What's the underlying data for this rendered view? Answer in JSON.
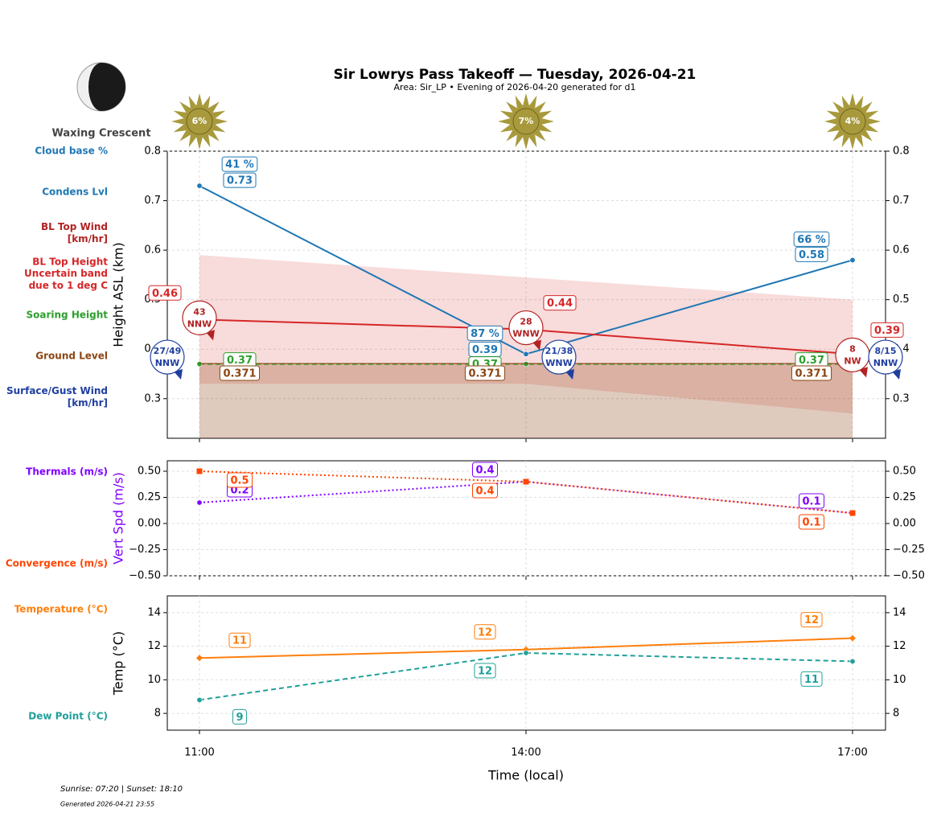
{
  "header": {
    "title": "Sir Lowrys Pass Takeoff — Tuesday, 2026-04-21",
    "subtitle": "Area: Sir_LP • Evening of 2026-04-20 generated for d1",
    "moon_phase": "Waxing Crescent",
    "sun_labels": [
      "6%",
      "7%",
      "4%"
    ]
  },
  "footer": [
    "Sunrise: 07:20 | Sunset: 18:10",
    "Generated 2026-04-21 23:55"
  ],
  "chart_data": [
    {
      "type": "line",
      "ylabel": "Height ASL (km)",
      "ylim": [
        0.22,
        0.8
      ],
      "yticks": [
        0.3,
        0.4,
        0.5,
        0.6,
        0.7,
        0.8
      ],
      "grid": true,
      "series": [
        {
          "name": "Cloud base %",
          "kind": "label",
          "color": "#1f77b4",
          "values": [
            41,
            87,
            66
          ],
          "value_labels": [
            "41 %",
            "87 %",
            "66 %"
          ]
        },
        {
          "name": "Condens Lvl",
          "kind": "line",
          "color": "#1f77b4",
          "values": [
            0.73,
            0.39,
            0.58
          ]
        },
        {
          "name": "BL Top Wind\n[km/hr]",
          "kind": "wind",
          "color": "#b22222",
          "values": [
            43,
            28,
            8
          ],
          "directions": [
            "NNW",
            "WNW",
            "NW"
          ]
        },
        {
          "name": "BL Top Height",
          "kind": "line",
          "color": "#d62728",
          "values": [
            0.46,
            0.44,
            0.39
          ]
        },
        {
          "name": "Uncertain band\ndue to 1 deg C",
          "kind": "band",
          "color": "#d62728",
          "upper": [
            0.59,
            0.545,
            0.5
          ],
          "lower": [
            0.33,
            0.33,
            0.27
          ]
        },
        {
          "name": "Soaring Height",
          "kind": "line",
          "linestyle": "dashed",
          "color": "#2ca02c",
          "values": [
            0.37,
            0.37,
            0.37
          ]
        },
        {
          "name": "Ground Level",
          "kind": "area",
          "color": "#8b4513",
          "values": [
            0.371,
            0.371,
            0.371
          ]
        },
        {
          "name": "Surface/Gust Wind\n[km/hr]",
          "kind": "wind",
          "color": "#1f3fa0",
          "values": [
            27,
            21,
            8
          ],
          "gusts": [
            49,
            38,
            15
          ],
          "value_labels": [
            "27/49",
            "21/38",
            "8/15"
          ],
          "directions": [
            "NNW",
            "WNW",
            "NNW"
          ]
        }
      ]
    },
    {
      "type": "line",
      "ylabel": "Vert Spd (m/s)",
      "ylim": [
        -0.5,
        0.6
      ],
      "yticks": [
        {
          "value": -0.5,
          "label": "−0.50"
        },
        {
          "value": -0.25,
          "label": "−0.25"
        },
        {
          "value": 0,
          "label": "0.00"
        },
        {
          "value": 0.25,
          "label": "0.25"
        },
        {
          "value": 0.5,
          "label": "0.50"
        }
      ],
      "grid": true,
      "series": [
        {
          "name": "Thermals (m/s)",
          "kind": "line",
          "linestyle": "dotted",
          "marker": "circle",
          "color": "#7f00ff",
          "values": [
            0.2,
            0.4,
            0.1
          ]
        },
        {
          "name": "Convergence (m/s)",
          "kind": "line",
          "linestyle": "dotted",
          "marker": "square",
          "color": "#ff4500",
          "values": [
            0.5,
            0.4,
            0.1
          ]
        }
      ]
    },
    {
      "type": "line",
      "ylabel": "Temp (°C)",
      "xlabel": "Time (local)",
      "categories": [
        "11:00",
        "14:00",
        "17:00"
      ],
      "ylim": [
        7,
        15
      ],
      "yticks": [
        8,
        10,
        12,
        14
      ],
      "grid": true,
      "series": [
        {
          "name": "Temperature (°C)",
          "kind": "line",
          "marker": "diamond",
          "color": "#ff7f0e",
          "values": [
            11.3,
            11.8,
            12.48
          ],
          "value_labels": [
            "11",
            "12",
            "12"
          ]
        },
        {
          "name": "Dew Point (°C)",
          "kind": "line",
          "linestyle": "dashed",
          "marker": "circle",
          "color": "#20a09a",
          "values": [
            8.8,
            11.6,
            11.1
          ],
          "value_labels": [
            "9",
            "12",
            "11"
          ]
        }
      ]
    }
  ]
}
